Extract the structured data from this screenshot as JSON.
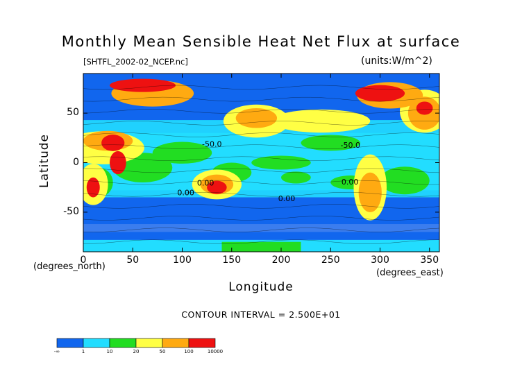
{
  "chart_data": {
    "type": "heatmap",
    "title": "Monthly Mean Sensible Heat Net Flux at surface",
    "file_label": "[SHTFL_2002-02_NCEP.nc]",
    "units_label": "(units:W/m^2)",
    "xlabel": "Longitude",
    "ylabel": "Latitude",
    "x_unit_label": "(degrees_east)",
    "y_unit_label": "(degrees_north)",
    "xlim": [
      0,
      360
    ],
    "ylim": [
      -90,
      90
    ],
    "x_ticks": [
      0,
      50,
      100,
      150,
      200,
      250,
      300,
      350
    ],
    "y_ticks": [
      50,
      0,
      -50
    ],
    "contour_interval_text": "CONTOUR INTERVAL = 2.500E+01",
    "contour_labels": [
      {
        "text": "-50.0",
        "lon": 120,
        "lat": 16
      },
      {
        "text": "-50.0",
        "lon": 260,
        "lat": 15
      },
      {
        "text": "0.00",
        "lon": 115,
        "lat": -23
      },
      {
        "text": "0.00",
        "lon": 261,
        "lat": -22
      },
      {
        "text": "0.00",
        "lon": 95,
        "lat": -33
      },
      {
        "text": "0.00",
        "lon": 197,
        "lat": -39
      }
    ],
    "colorbar": {
      "colors": [
        "#1166ee",
        "#22ddff",
        "#22dd22",
        "#ffff44",
        "#ffaa11",
        "#ee1111"
      ],
      "labels": [
        "-∞",
        "1",
        "10",
        "20",
        "50",
        "100",
        "10000"
      ]
    }
  }
}
